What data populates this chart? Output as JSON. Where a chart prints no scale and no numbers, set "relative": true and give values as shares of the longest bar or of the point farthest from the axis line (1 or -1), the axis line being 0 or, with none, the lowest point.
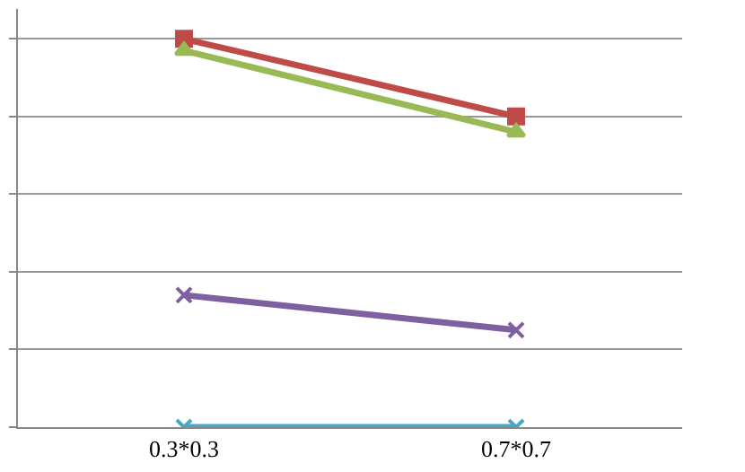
{
  "chart_data": {
    "type": "line",
    "relative": true,
    "categories": [
      "0.3*0.3",
      "0.7*0.7"
    ],
    "series": [
      {
        "color": "#4a7ebb",
        "marker": "diamond",
        "values": [
          null,
          null
        ]
      },
      {
        "color": "#be4b48",
        "marker": "square",
        "values": [
          1,
          0.8
        ]
      },
      {
        "color": "#98b954",
        "marker": "triangle",
        "values": [
          0.97,
          0.76
        ]
      },
      {
        "color": "#7d60a0",
        "marker": "cross",
        "values": [
          0.34,
          0.25
        ]
      },
      {
        "color": "#46aac5",
        "marker": "cross",
        "values": [
          0,
          0
        ]
      }
    ],
    "grid": "y"
  }
}
